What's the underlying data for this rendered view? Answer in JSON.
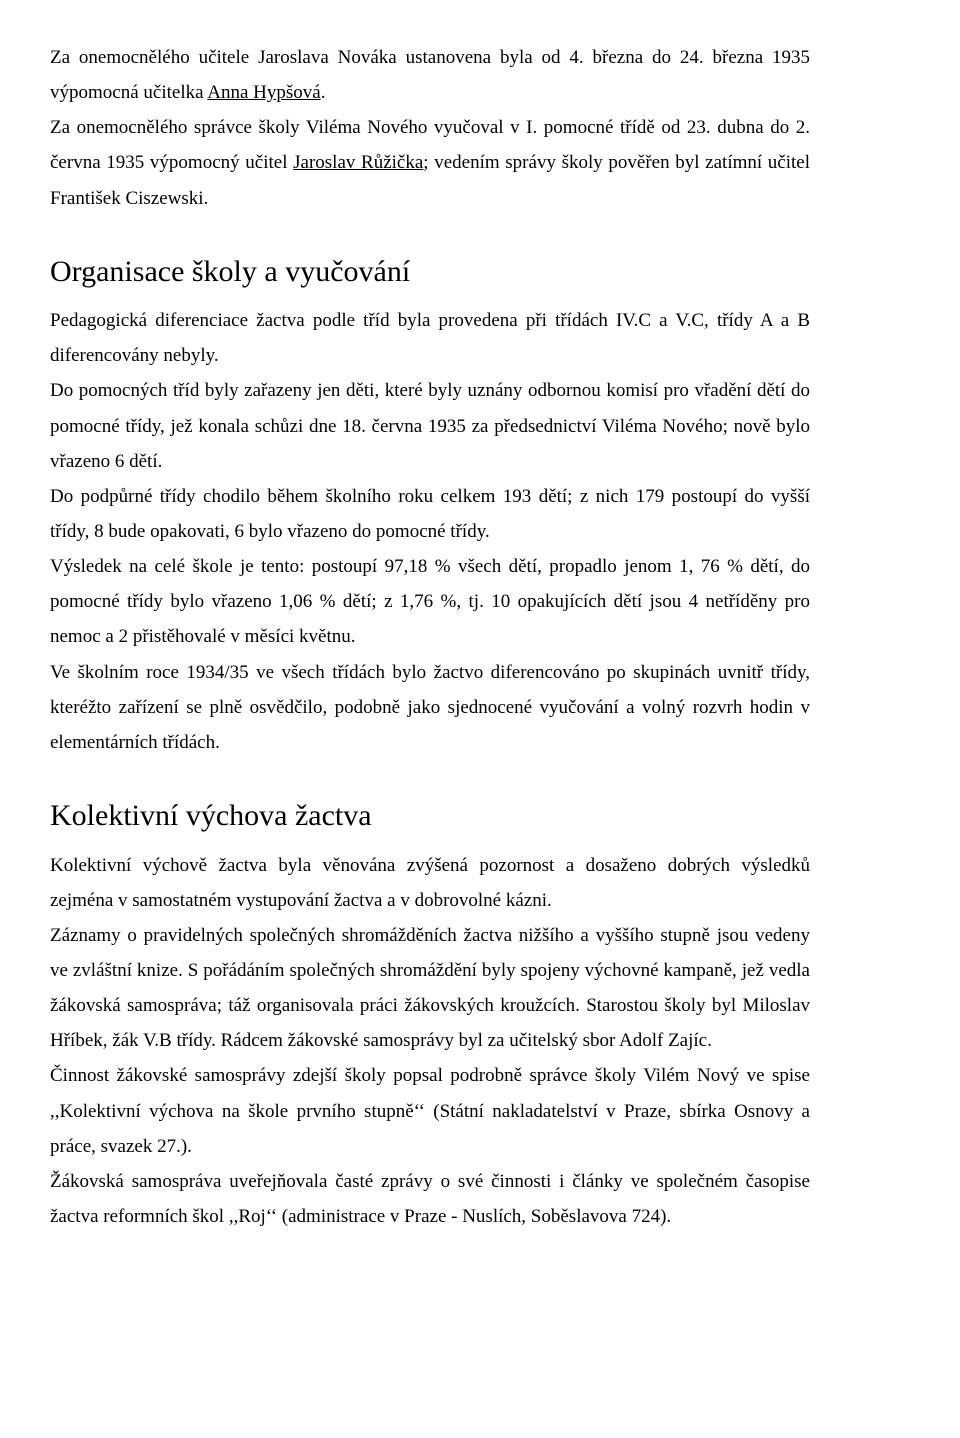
{
  "intro": {
    "p1_a": "Za onemocnělého učitele Jaroslava Nováka ustanovena byla od 4. března do 24. března 1935 výpomocná učitelka ",
    "p1_u": "Anna Hypšová",
    "p1_b": ".",
    "p2": "Za onemocnělého správce školy Viléma Nového  vyučoval v I. pomocné třídě od 23. dubna do 2. června 1935 výpomocný učitel ",
    "p2_u": "Jaroslav Růžička",
    "p2_b": "; vedením správy školy pověřen byl zatímní učitel František Ciszewski."
  },
  "sec1": {
    "title": "Organisace školy a vyučování",
    "p1": "Pedagogická diferenciace žactva podle tříd byla provedena při třídách IV.C a V.C, třídy A a B diferencovány nebyly.",
    "p2": "Do pomocných tříd byly zařazeny jen děti, které byly uznány odbornou komisí pro vřadění dětí do pomocné třídy, jež konala schůzi dne 18. června 1935 za předsednictví Viléma Nového; nově bylo vřazeno 6 dětí.",
    "p3": "Do podpůrné třídy chodilo během školního roku celkem 193 dětí; z nich 179 postoupí do vyšší třídy, 8 bude opakovati, 6 bylo vřazeno do pomocné třídy.",
    "p4": "Výsledek na celé škole je tento: postoupí 97,18 % všech dětí, propadlo jenom 1, 76 % dětí, do pomocné třídy bylo vřazeno 1,06 % dětí; z 1,76 %, tj. 10 opakujících dětí jsou 4 netříděny pro nemoc a 2 přistěhovalé v měsíci květnu.",
    "p5": "Ve školním roce 1934/35 ve všech třídách bylo žactvo diferencováno po skupinách uvnitř třídy, kteréžto zařízení se plně osvědčilo, podobně jako sjednocené vyučování a volný rozvrh hodin v elementárních třídách."
  },
  "sec2": {
    "title": "Kolektivní výchova žactva",
    "p1": "Kolektivní výchově žactva byla věnována zvýšená pozornost a dosaženo dobrých výsledků zejména v samostatném vystupování žactva a v dobrovolné kázni.",
    "p2": "Záznamy o pravidelných společných shromážděních žactva nižšího a vyššího stupně jsou vedeny ve zvláštní knize. S pořádáním společných shromáždění byly spojeny výchovné kampaně, jež vedla žákovská samospráva; táž organisovala práci  žákovských kroužcích. Starostou školy byl Miloslav Hříbek, žák V.B třídy. Rádcem žákovské samosprávy byl za učitelský sbor Adolf Zajíc.",
    "p3": "Činnost žákovské samosprávy zdejší školy popsal podrobně správce školy Vilém Nový ve spise ,,Kolektivní výchova na škole prvního stupně‘‘ (Státní nakladatelství v Praze, sbírka Osnovy a práce, svazek 27.).",
    "p4": "Žákovská samospráva uveřejňovala časté zprávy o své činnosti i články ve společném časopise žactva reformních škol ,,Roj‘‘ (administrace v Praze - Nuslích, Soběslavova 724)."
  }
}
